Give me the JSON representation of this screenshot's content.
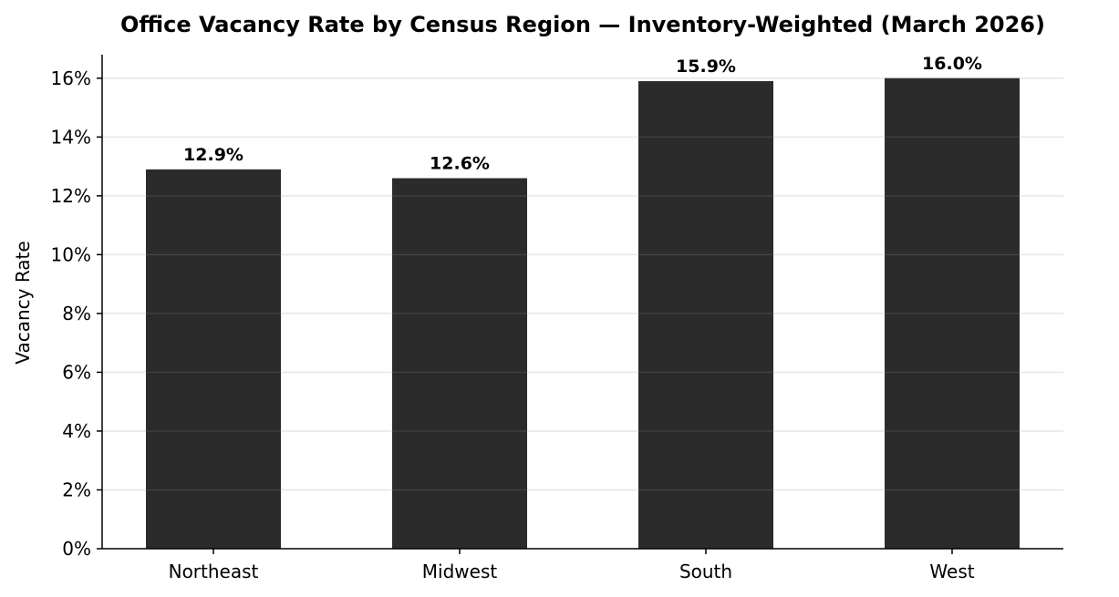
{
  "chart_data": {
    "type": "bar",
    "title": "Office Vacancy Rate by Census Region — Inventory-Weighted (March 2026)",
    "xlabel": "",
    "ylabel": "Vacancy Rate",
    "categories": [
      "Northeast",
      "Midwest",
      "South",
      "West"
    ],
    "values": [
      12.9,
      12.6,
      15.9,
      16.0
    ],
    "data_labels": [
      "12.9%",
      "12.6%",
      "15.9%",
      "16.0%"
    ],
    "ylim": [
      0,
      16.8
    ],
    "yticks": [
      0,
      2,
      4,
      6,
      8,
      10,
      12,
      14,
      16
    ],
    "ytick_labels": [
      "0%",
      "2%",
      "4%",
      "6%",
      "8%",
      "10%",
      "12%",
      "14%",
      "16%"
    ],
    "grid": "horizontal",
    "legend": "none",
    "bar_color": "#2b2b2b",
    "grid_color": "#e6e6e6"
  }
}
